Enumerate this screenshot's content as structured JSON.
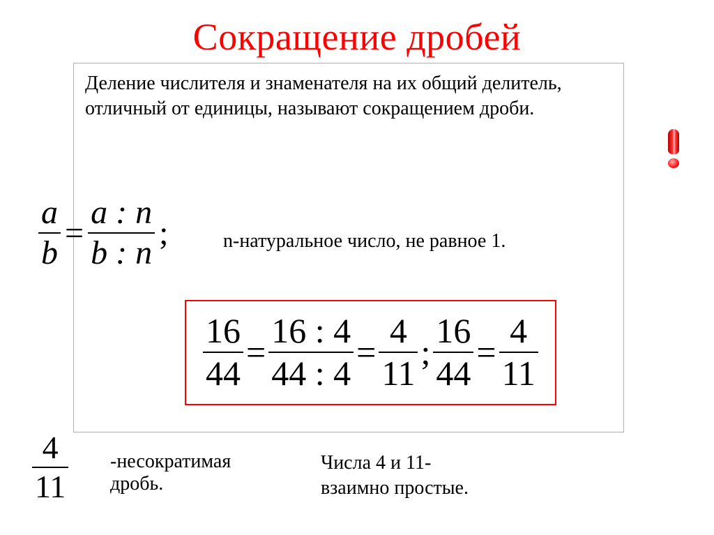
{
  "colors": {
    "title": "#ff0000",
    "text": "#000000",
    "example_border": "#ff0000",
    "card_border": "#b0b0b0",
    "background": "#ffffff"
  },
  "typography": {
    "family": "Times New Roman",
    "title_fontsize": 54,
    "body_fontsize": 28,
    "formula_fontsize": 48,
    "example_fontsize": 50
  },
  "title": "Сокращение дробей",
  "definition": "Деление числителя и знаменателя на их общий делитель, отличный от единицы, называют сокращением дроби.",
  "formula": {
    "lhs": {
      "num": "a",
      "den": "b"
    },
    "rhs": {
      "num": "a : n",
      "den": "b : n"
    },
    "eq": "=",
    "terminator": ";",
    "note": "n-натуральное число, не равное 1."
  },
  "example": {
    "t0": {
      "num": "16",
      "den": "44"
    },
    "eq1": "=",
    "t1": {
      "num": "16 : 4",
      "den": "44 : 4"
    },
    "eq2": "=",
    "t2": {
      "num": "4",
      "den": "11"
    },
    "sep": ";",
    "t3": {
      "num": "16",
      "den": "44"
    },
    "eq3": "=",
    "t4": {
      "num": "4",
      "den": "11"
    }
  },
  "irreducible": {
    "frac": {
      "num": "4",
      "den": "11"
    },
    "label": "-несократимая\nдробь."
  },
  "coprime_note": "Числа 4 и 11-\nвзаимно простые."
}
